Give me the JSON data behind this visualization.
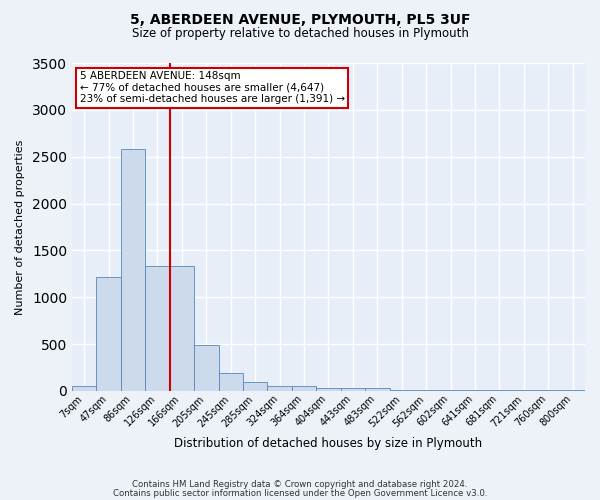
{
  "title1": "5, ABERDEEN AVENUE, PLYMOUTH, PL5 3UF",
  "title2": "Size of property relative to detached houses in Plymouth",
  "xlabel": "Distribution of detached houses by size in Plymouth",
  "ylabel": "Number of detached properties",
  "bar_labels": [
    "7sqm",
    "47sqm",
    "86sqm",
    "126sqm",
    "166sqm",
    "205sqm",
    "245sqm",
    "285sqm",
    "324sqm",
    "364sqm",
    "404sqm",
    "443sqm",
    "483sqm",
    "522sqm",
    "562sqm",
    "602sqm",
    "641sqm",
    "681sqm",
    "721sqm",
    "760sqm",
    "800sqm"
  ],
  "bar_values": [
    50,
    1220,
    2580,
    1330,
    1330,
    490,
    190,
    100,
    50,
    50,
    30,
    30,
    30,
    5,
    5,
    5,
    5,
    5,
    5,
    5,
    5
  ],
  "bar_color": "#ccdaec",
  "bar_edge_color": "#5588bb",
  "bg_color": "#e8eef8",
  "grid_color": "#ffffff",
  "vline_color": "#cc0000",
  "vline_x": 4.0,
  "annotation_lines": [
    "5 ABERDEEN AVENUE: 148sqm",
    "← 77% of detached houses are smaller (4,647)",
    "23% of semi-detached houses are larger (1,391) →"
  ],
  "annotation_box_color": "#cc0000",
  "ylim": [
    0,
    3500
  ],
  "yticks": [
    0,
    500,
    1000,
    1500,
    2000,
    2500,
    3000,
    3500
  ],
  "footer1": "Contains HM Land Registry data © Crown copyright and database right 2024.",
  "footer2": "Contains public sector information licensed under the Open Government Licence v3.0."
}
